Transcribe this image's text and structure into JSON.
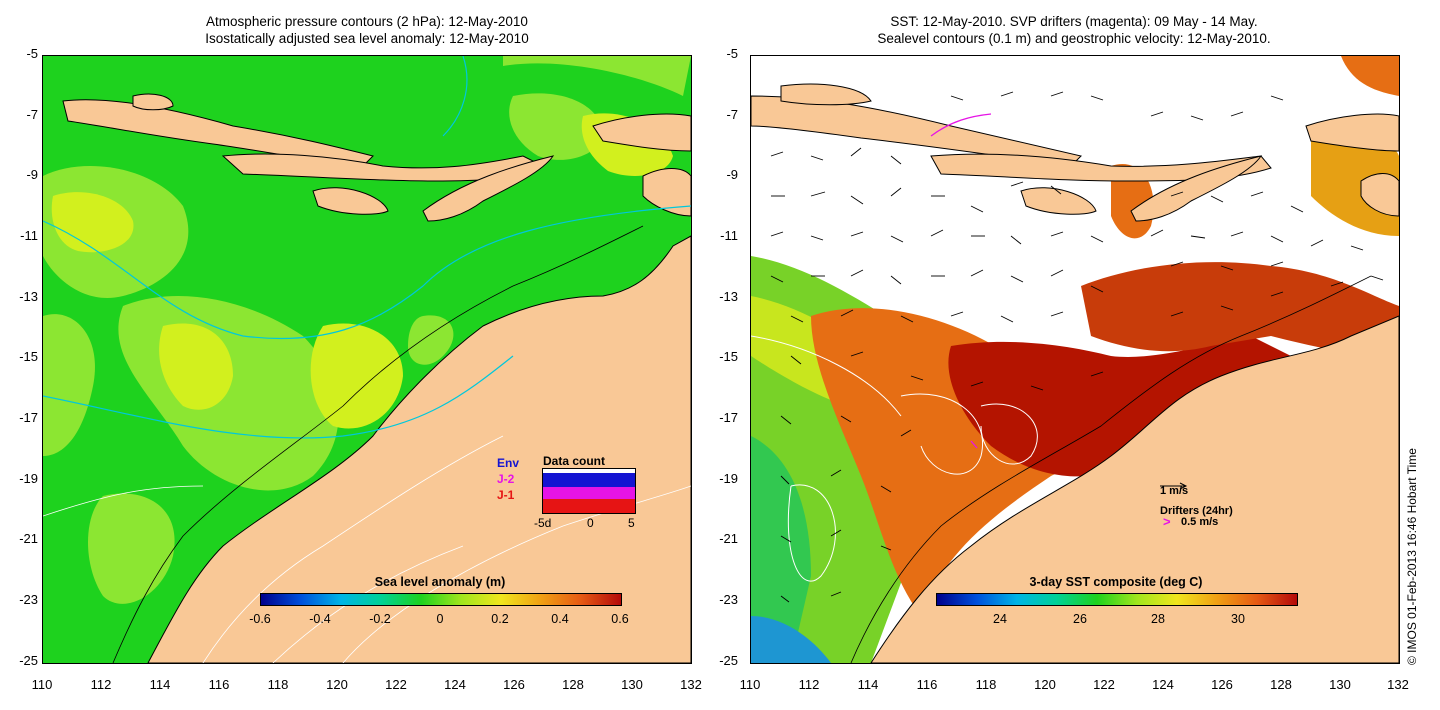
{
  "left_panel": {
    "title_line1": "Atmospheric pressure contours (2 hPa): 12-May-2010",
    "title_line2": "Isostatically adjusted sea level anomaly: 12-May-2010",
    "y_ticks": [
      "-5",
      "-7",
      "-9",
      "-11",
      "-13",
      "-15",
      "-17",
      "-19",
      "-21",
      "-23",
      "-25"
    ],
    "x_ticks": [
      "110",
      "112",
      "114",
      "116",
      "118",
      "120",
      "122",
      "124",
      "126",
      "128",
      "130",
      "132"
    ],
    "colorbar_title": "Sea level anomaly (m)",
    "colorbar_ticks": [
      "-0.6",
      "-0.4",
      "-0.2",
      "0",
      "0.2",
      "0.4",
      "0.6"
    ],
    "legend": {
      "title": "Data count",
      "missions": [
        "Env",
        "J-2",
        "J-1"
      ],
      "mission_colors": [
        "#1414d2",
        "#e614e6",
        "#e61414"
      ],
      "x_labels": [
        "-5d",
        "0",
        "5"
      ]
    }
  },
  "right_panel": {
    "title_line1": "SST: 12-May-2010. SVP drifters (magenta): 09 May - 14 May.",
    "title_line2": "Sealevel contours (0.1 m) and geostrophic velocity: 12-May-2010.",
    "y_ticks": [
      "-5",
      "-7",
      "-9",
      "-11",
      "-13",
      "-15",
      "-17",
      "-19",
      "-21",
      "-23",
      "-25"
    ],
    "x_ticks": [
      "110",
      "112",
      "114",
      "116",
      "118",
      "120",
      "122",
      "124",
      "126",
      "128",
      "130",
      "132"
    ],
    "colorbar_title": "3-day SST composite (deg C)",
    "colorbar_ticks": [
      "24",
      "26",
      "28",
      "30"
    ],
    "velocity_scale_label": "1 m/s",
    "drifters_label": "Drifters (24hr)",
    "drifters_scale_label": "0.5 m/s"
  },
  "credit": "© IMOS 01-Feb-2013 16:46 Hobart Time",
  "colors": {
    "land": "#f9c896",
    "ocean_green": "#1ed21e",
    "ocean_lightgreen": "#8ce632",
    "ocean_yellow": "#d2f01e",
    "sst_red": "#b41400",
    "sst_orange": "#e66e14",
    "cloud": "#ffffff",
    "drifter": "#e614e6"
  }
}
